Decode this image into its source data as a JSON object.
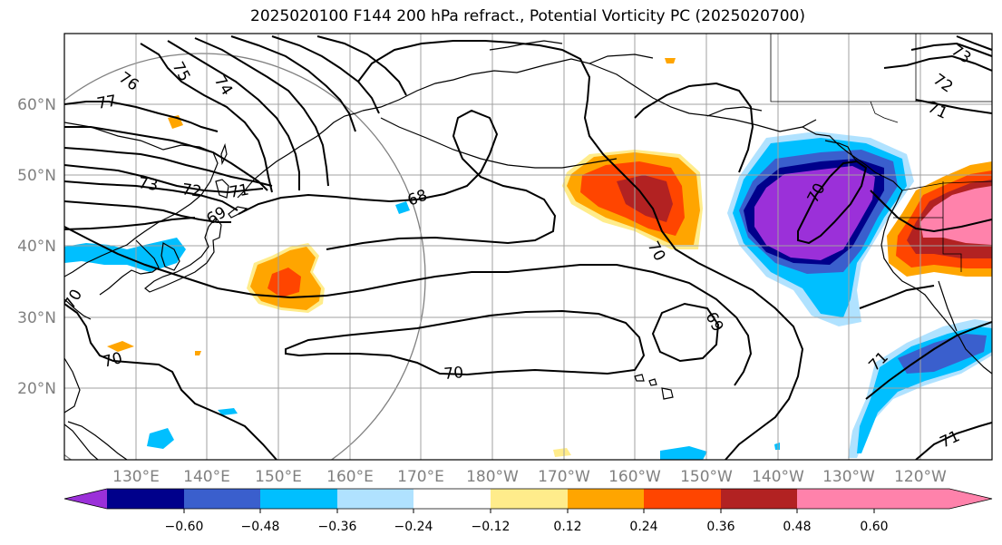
{
  "title": "2025020100 F144 200 hPa refract., Potential Vorticity PC (2025020700)",
  "lat_labels": [
    "60°N",
    "50°N",
    "40°N",
    "30°N",
    "20°N"
  ],
  "lon_labels": [
    "130°E",
    "140°E",
    "150°E",
    "160°E",
    "170°E",
    "180°W",
    "170°W",
    "160°W",
    "150°W",
    "140°W",
    "130°W",
    "120°W"
  ],
  "contour_labels": [
    "76",
    "75",
    "74",
    "77",
    "73",
    "72",
    "71",
    "69",
    "68",
    "70",
    "70",
    "70",
    "70",
    "69",
    "70",
    "71",
    "72",
    "73",
    "71",
    "71"
  ],
  "colorbar": {
    "ticks": [
      "−0.60",
      "−0.48",
      "−0.36",
      "−0.24",
      "−0.12",
      "0.12",
      "0.24",
      "0.36",
      "0.48",
      "0.60"
    ],
    "colors": [
      "#9b30d9",
      "#00008b",
      "#3a5fcd",
      "#00bfff",
      "#b0e2ff",
      "#ffffff",
      "#ffec8b",
      "#ffa500",
      "#ff4500",
      "#b22222",
      "#ff82ab"
    ]
  }
}
